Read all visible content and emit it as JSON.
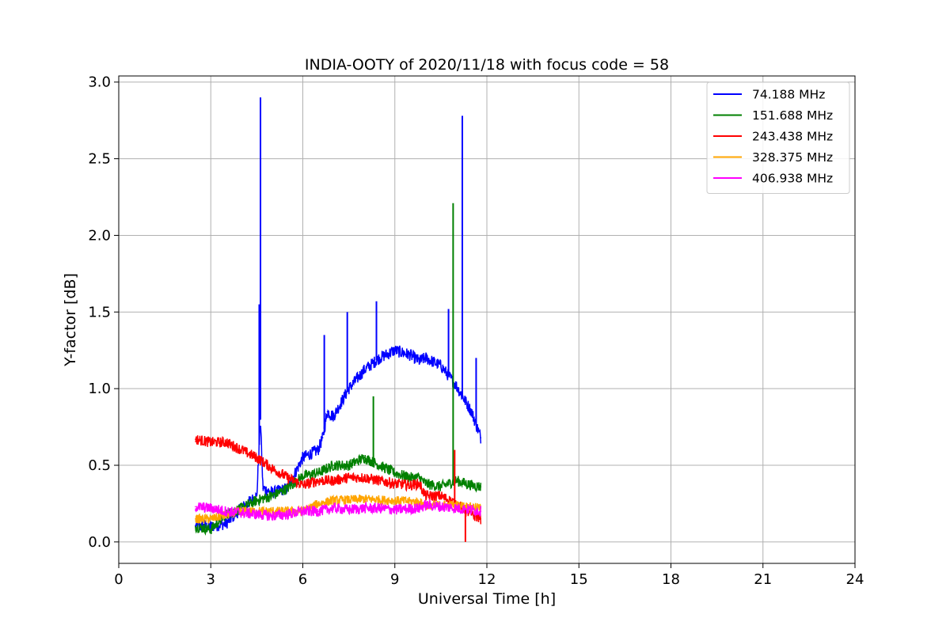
{
  "chart_data": {
    "type": "line",
    "title": "INDIA-OOTY of 2020/11/18 with focus code = 58",
    "xlabel": "Universal Time [h]",
    "ylabel": "Y-factor [dB]",
    "xlim": [
      0,
      24
    ],
    "ylim": [
      -0.14,
      3.04
    ],
    "xticks": [
      "0",
      "3",
      "6",
      "9",
      "12",
      "15",
      "18",
      "21",
      "24"
    ],
    "yticks": [
      "0.0",
      "0.5",
      "1.0",
      "1.5",
      "2.0",
      "2.5",
      "3.0"
    ],
    "grid": true,
    "legend_position": "upper right",
    "series": [
      {
        "name": " 74.188 MHz",
        "color": "#0000ff",
        "noise": 0.04,
        "x": [
          2.5,
          3.0,
          3.5,
          4.0,
          4.5,
          4.62,
          4.7,
          5.0,
          5.5,
          6.0,
          6.5,
          6.65,
          6.8,
          7.0,
          7.5,
          8.0,
          8.5,
          9.0,
          9.5,
          9.8,
          10.0,
          10.5,
          11.0,
          11.5,
          11.8
        ],
        "y": [
          0.1,
          0.1,
          0.12,
          0.22,
          0.3,
          0.8,
          0.35,
          0.32,
          0.35,
          0.55,
          0.6,
          0.68,
          0.85,
          0.82,
          1.0,
          1.12,
          1.2,
          1.25,
          1.22,
          1.18,
          1.2,
          1.15,
          1.02,
          0.85,
          0.68
        ]
      },
      {
        "name": "151.688 MHz",
        "color": "#008000",
        "noise": 0.035,
        "x": [
          2.5,
          3.0,
          3.5,
          4.0,
          4.5,
          5.0,
          5.5,
          6.0,
          6.5,
          7.0,
          7.5,
          8.0,
          8.5,
          9.0,
          9.5,
          9.8,
          10.0,
          10.5,
          11.0,
          11.5,
          11.8
        ],
        "y": [
          0.1,
          0.08,
          0.18,
          0.22,
          0.27,
          0.3,
          0.35,
          0.43,
          0.45,
          0.5,
          0.5,
          0.55,
          0.5,
          0.45,
          0.42,
          0.42,
          0.38,
          0.36,
          0.4,
          0.37,
          0.36
        ]
      },
      {
        "name": "243.438 MHz",
        "color": "#ff0000",
        "noise": 0.035,
        "x": [
          2.5,
          3.0,
          3.5,
          4.0,
          4.5,
          5.0,
          5.5,
          6.0,
          6.5,
          7.0,
          7.5,
          8.0,
          8.5,
          9.0,
          9.5,
          9.8,
          10.0,
          10.5,
          11.0,
          11.5,
          11.8
        ],
        "y": [
          0.67,
          0.65,
          0.65,
          0.6,
          0.55,
          0.48,
          0.42,
          0.37,
          0.4,
          0.4,
          0.42,
          0.42,
          0.4,
          0.38,
          0.37,
          0.38,
          0.3,
          0.3,
          0.25,
          0.18,
          0.15
        ]
      },
      {
        "name": "328.375 MHz",
        "color": "#ffa500",
        "noise": 0.03,
        "x": [
          2.5,
          3.0,
          4.0,
          5.0,
          6.0,
          6.5,
          7.0,
          8.0,
          9.0,
          9.8,
          10.0,
          11.0,
          11.8
        ],
        "y": [
          0.15,
          0.15,
          0.2,
          0.2,
          0.2,
          0.25,
          0.27,
          0.28,
          0.27,
          0.26,
          0.24,
          0.24,
          0.22
        ]
      },
      {
        "name": "406.938 MHz",
        "color": "#ff00ff",
        "noise": 0.035,
        "x": [
          2.5,
          3.0,
          3.5,
          4.0,
          4.5,
          5.0,
          5.5,
          6.0,
          6.5,
          7.0,
          7.5,
          8.0,
          8.5,
          9.0,
          9.8,
          10.0,
          10.5,
          11.0,
          11.5,
          11.8
        ],
        "y": [
          0.23,
          0.22,
          0.2,
          0.19,
          0.18,
          0.17,
          0.18,
          0.2,
          0.2,
          0.22,
          0.21,
          0.22,
          0.22,
          0.21,
          0.22,
          0.24,
          0.23,
          0.22,
          0.21,
          0.2
        ]
      }
    ],
    "spikes": [
      {
        "series": 0,
        "x": 4.62,
        "y": 2.9
      },
      {
        "series": 0,
        "x": 4.58,
        "y": 1.55
      },
      {
        "series": 0,
        "x": 6.7,
        "y": 1.35
      },
      {
        "series": 0,
        "x": 7.45,
        "y": 1.5
      },
      {
        "series": 0,
        "x": 8.4,
        "y": 1.57
      },
      {
        "series": 0,
        "x": 10.75,
        "y": 1.52
      },
      {
        "series": 0,
        "x": 11.2,
        "y": 2.78
      },
      {
        "series": 0,
        "x": 11.65,
        "y": 1.2
      },
      {
        "series": 1,
        "x": 8.3,
        "y": 0.95
      },
      {
        "series": 1,
        "x": 10.9,
        "y": 2.21
      },
      {
        "series": 2,
        "x": 10.95,
        "y": 0.6
      },
      {
        "series": 2,
        "x": 11.3,
        "y": 0.0
      }
    ]
  }
}
